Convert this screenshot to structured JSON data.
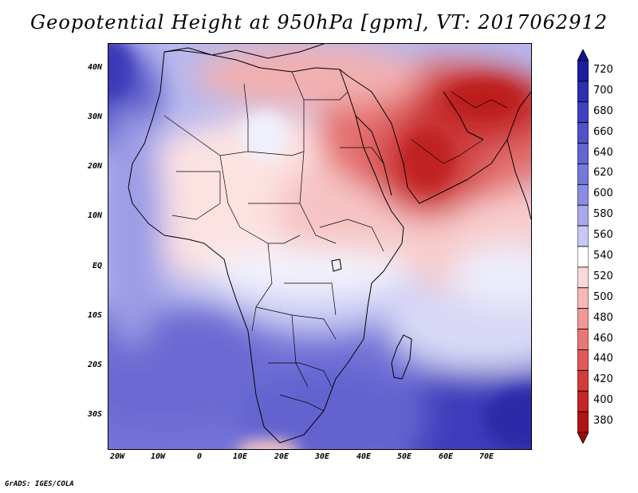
{
  "title": "Geopotential Height at 950hPa [gpm], VT: 2017062912",
  "credit": "GrADS: IGES/COLA",
  "map": {
    "lat_labels": [
      "40N",
      "30N",
      "20N",
      "10N",
      "EQ",
      "10S",
      "20S",
      "30S"
    ],
    "lon_labels": [
      "20W",
      "10W",
      "0",
      "10E",
      "20E",
      "30E",
      "40E",
      "50E",
      "60E",
      "70E"
    ],
    "lon_range": [
      -23,
      80
    ],
    "lat_range": [
      -37,
      45
    ]
  },
  "colorbar": {
    "levels": [
      "720",
      "700",
      "680",
      "660",
      "640",
      "620",
      "600",
      "580",
      "560",
      "540",
      "520",
      "500",
      "480",
      "460",
      "440",
      "420",
      "400",
      "380"
    ],
    "colors": [
      "#1e1ea0",
      "#2e2eb0",
      "#4040c0",
      "#5252c8",
      "#6464d2",
      "#7878da",
      "#8c8ce2",
      "#a8a8ec",
      "#c8c8f4",
      "#ffffff",
      "#fcd8d8",
      "#f8b8b8",
      "#f09898",
      "#e87878",
      "#e05858",
      "#d43c3c",
      "#c42626",
      "#b01414"
    ]
  }
}
